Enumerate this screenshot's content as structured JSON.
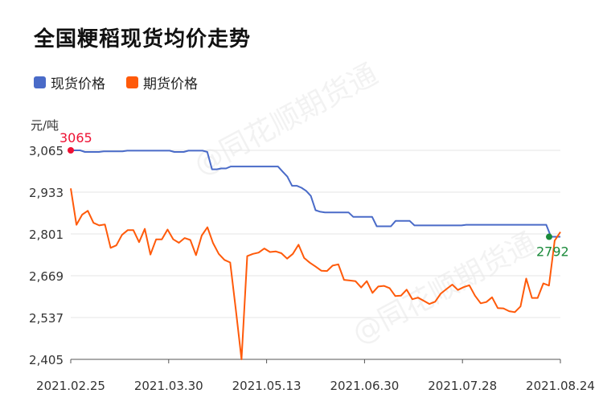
{
  "chart_data": {
    "type": "line",
    "title": "全国粳稻现货均价走势",
    "ylabel": "元/吨",
    "xlabel": "",
    "ylim": [
      2405,
      3065
    ],
    "yticks": [
      "3,065",
      "2,933",
      "2,801",
      "2,669",
      "2,537",
      "2,405"
    ],
    "ytick_values": [
      3065,
      2933,
      2801,
      2669,
      2537,
      2405
    ],
    "xticks": [
      "2021.02.25",
      "2021.03.30",
      "2021.05.13",
      "2021.06.30",
      "2021.07.28",
      "2021.08.24"
    ],
    "grid": true,
    "legend_position": "top-left",
    "series": [
      {
        "name": "现货价格",
        "color": "#4a6bc8",
        "values": [
          3065,
          3065,
          3065,
          3060,
          3060,
          3060,
          3060,
          3062,
          3062,
          3062,
          3062,
          3062,
          3064,
          3064,
          3064,
          3064,
          3064,
          3064,
          3064,
          3064,
          3064,
          3064,
          3060,
          3060,
          3060,
          3064,
          3064,
          3064,
          3064,
          3060,
          3005,
          3005,
          3008,
          3008,
          3014,
          3014,
          3014,
          3014,
          3014,
          3014,
          3014,
          3014,
          3014,
          3014,
          3014,
          2998,
          2982,
          2953,
          2953,
          2947,
          2937,
          2921,
          2876,
          2871,
          2869,
          2869,
          2869,
          2869,
          2869,
          2869,
          2855,
          2855,
          2855,
          2855,
          2855,
          2825,
          2825,
          2825,
          2825,
          2842,
          2842,
          2842,
          2842,
          2828,
          2828,
          2828,
          2828,
          2828,
          2828,
          2828,
          2828,
          2828,
          2828,
          2828,
          2830,
          2830,
          2830,
          2830,
          2830,
          2830,
          2830,
          2830,
          2830,
          2830,
          2830,
          2830,
          2830,
          2830,
          2830,
          2830,
          2830,
          2830,
          2792,
          2792,
          2792
        ]
      },
      {
        "name": "期货价格",
        "color": "#ff5a0a",
        "values": [
          2945,
          2830,
          2862,
          2874,
          2836,
          2828,
          2831,
          2757,
          2765,
          2798,
          2813,
          2813,
          2775,
          2817,
          2736,
          2784,
          2784,
          2815,
          2784,
          2773,
          2788,
          2782,
          2734,
          2796,
          2822,
          2772,
          2738,
          2719,
          2711,
          2560,
          2405,
          2731,
          2738,
          2742,
          2755,
          2744,
          2746,
          2740,
          2723,
          2738,
          2767,
          2725,
          2710,
          2698,
          2685,
          2684,
          2701,
          2705,
          2656,
          2654,
          2652,
          2632,
          2652,
          2615,
          2635,
          2637,
          2630,
          2605,
          2606,
          2625,
          2595,
          2600,
          2590,
          2580,
          2587,
          2613,
          2627,
          2641,
          2624,
          2633,
          2639,
          2606,
          2582,
          2586,
          2601,
          2567,
          2566,
          2557,
          2554,
          2572,
          2660,
          2599,
          2599,
          2645,
          2638,
          2780,
          2807
        ]
      }
    ],
    "annotations": [
      {
        "label": "3065",
        "series": "现货价格",
        "position": "start",
        "value": 3065,
        "color": "#ee1133"
      },
      {
        "label": "2792",
        "series": "现货价格",
        "position": "end",
        "value": 2792,
        "color": "#1a8a3a"
      }
    ]
  },
  "watermark": "@同花顺期货通"
}
